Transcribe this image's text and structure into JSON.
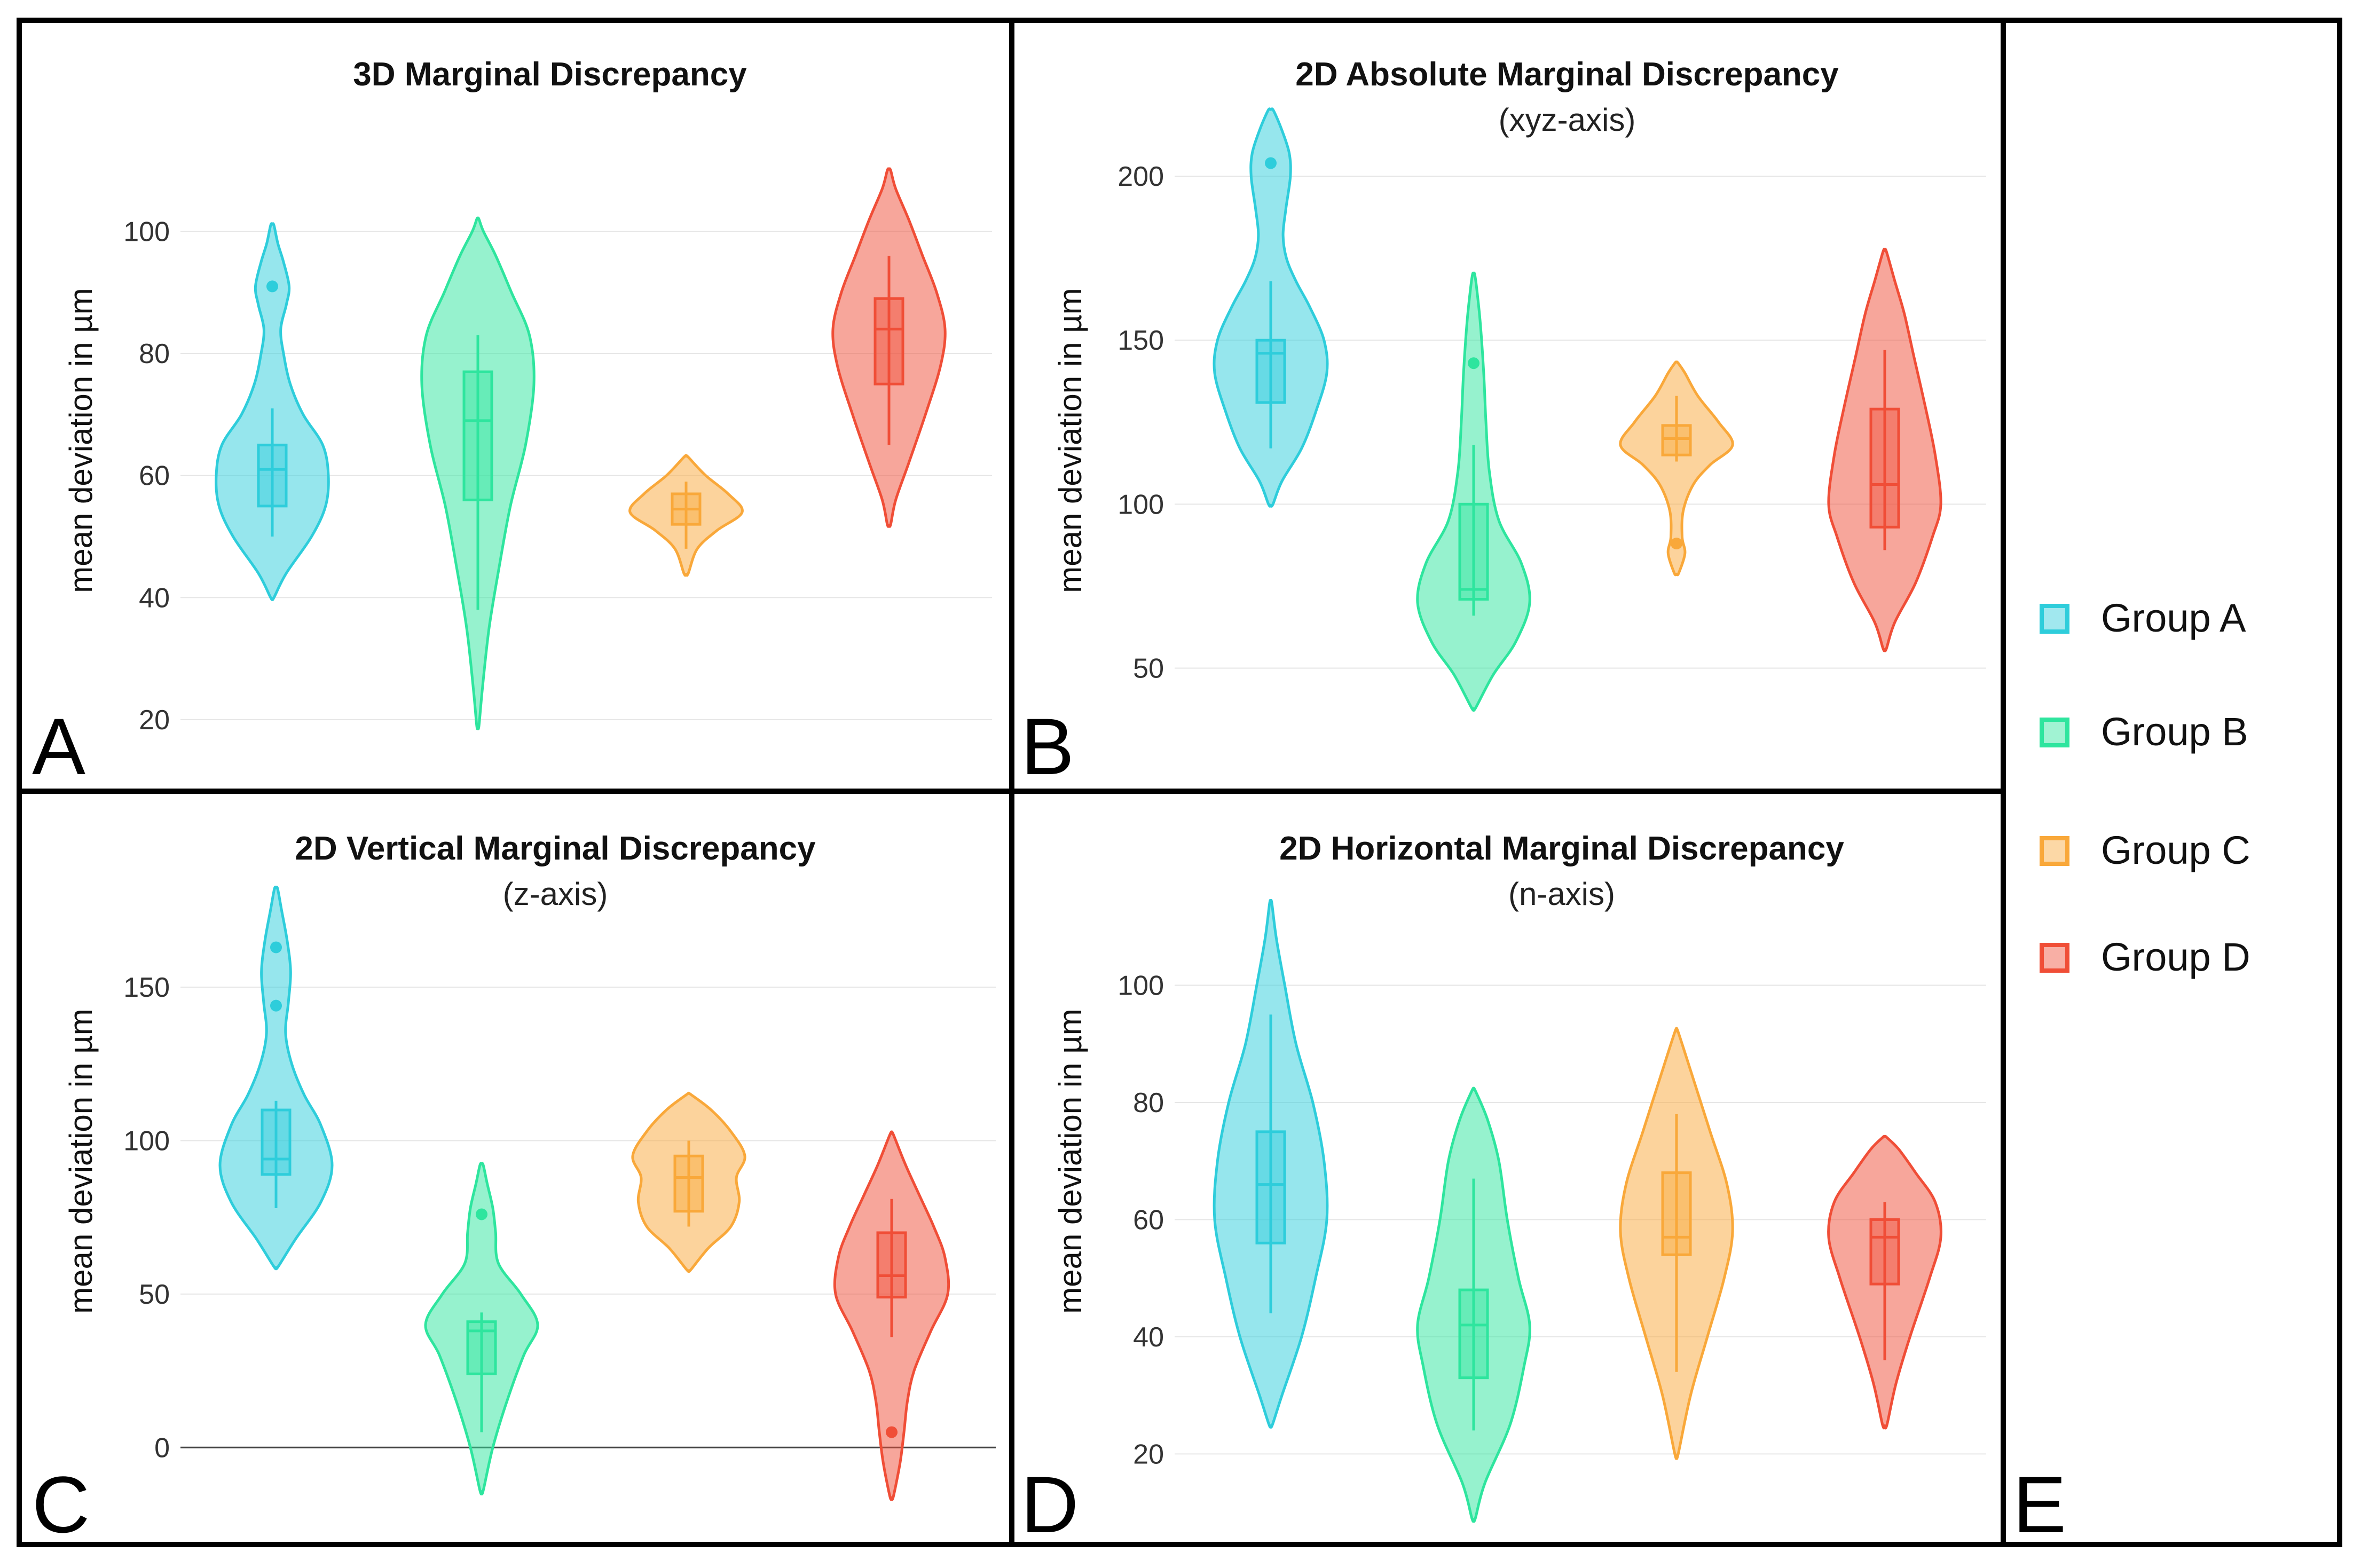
{
  "colors": {
    "Group A": "#2ECDDB",
    "Group B": "#2EE59E",
    "Group C": "#F9A83A",
    "Group D": "#F04E37"
  },
  "legend": {
    "items": [
      {
        "label": "Group A",
        "color": "#2ECDDB"
      },
      {
        "label": "Group B",
        "color": "#2EE59E"
      },
      {
        "label": "Group C",
        "color": "#F9A83A"
      },
      {
        "label": "Group D",
        "color": "#F04E37"
      }
    ],
    "panel_letter": "E"
  },
  "chart_data": [
    {
      "type": "violin",
      "panel_letter": "A",
      "title": "3D Marginal Discrepancy",
      "subtitle": "",
      "xlabel": "",
      "ylabel": "mean deviation in µm",
      "ylim": [
        15,
        113
      ],
      "yticks": [
        20,
        40,
        60,
        80,
        100
      ],
      "zero_line": false,
      "groups": [
        {
          "name": "Group A",
          "min": 50,
          "q1": 55,
          "median": 61,
          "q3": 65,
          "max": 71,
          "outliers": [
            91
          ],
          "density": [
            [
              40,
              0.03
            ],
            [
              44,
              0.25
            ],
            [
              50,
              0.7
            ],
            [
              55,
              0.95
            ],
            [
              60,
              1.0
            ],
            [
              65,
              0.9
            ],
            [
              70,
              0.55
            ],
            [
              75,
              0.32
            ],
            [
              80,
              0.2
            ],
            [
              84,
              0.15
            ],
            [
              88,
              0.25
            ],
            [
              91,
              0.3
            ],
            [
              95,
              0.2
            ],
            [
              98,
              0.1
            ],
            [
              101,
              0.03
            ]
          ]
        },
        {
          "name": "Group B",
          "min": 38,
          "q1": 56,
          "median": 69,
          "q3": 77,
          "max": 83,
          "outliers": [],
          "density": [
            [
              19,
              0.02
            ],
            [
              25,
              0.08
            ],
            [
              35,
              0.2
            ],
            [
              45,
              0.38
            ],
            [
              55,
              0.58
            ],
            [
              65,
              0.85
            ],
            [
              75,
              1.0
            ],
            [
              83,
              0.92
            ],
            [
              90,
              0.6
            ],
            [
              96,
              0.32
            ],
            [
              100,
              0.1
            ],
            [
              102,
              0.02
            ]
          ]
        },
        {
          "name": "Group C",
          "min": 48,
          "q1": 52,
          "median": 54.5,
          "q3": 57,
          "max": 59,
          "outliers": [],
          "density": [
            [
              44,
              0.04
            ],
            [
              48,
              0.2
            ],
            [
              51,
              0.55
            ],
            [
              54,
              1.0
            ],
            [
              57,
              0.75
            ],
            [
              60,
              0.35
            ],
            [
              63,
              0.04
            ]
          ]
        },
        {
          "name": "Group D",
          "min": 65,
          "q1": 75,
          "median": 84,
          "q3": 89,
          "max": 96,
          "outliers": [],
          "density": [
            [
              52,
              0.03
            ],
            [
              56,
              0.12
            ],
            [
              62,
              0.35
            ],
            [
              70,
              0.65
            ],
            [
              78,
              0.92
            ],
            [
              84,
              1.0
            ],
            [
              90,
              0.85
            ],
            [
              96,
              0.6
            ],
            [
              102,
              0.35
            ],
            [
              107,
              0.12
            ],
            [
              110,
              0.03
            ]
          ]
        }
      ]
    },
    {
      "type": "violin",
      "panel_letter": "B",
      "title": "2D Absolute Marginal Discrepancy",
      "subtitle": "(xyz-axis)",
      "xlabel": "",
      "ylabel": "mean deviation in µm",
      "ylim": [
        25,
        222
      ],
      "yticks": [
        50,
        100,
        150,
        200
      ],
      "zero_line": false,
      "groups": [
        {
          "name": "Group A",
          "min": 117,
          "q1": 131,
          "median": 146,
          "q3": 150,
          "max": 168,
          "outliers": [
            204
          ],
          "density": [
            [
              100,
              0.04
            ],
            [
              107,
              0.2
            ],
            [
              117,
              0.55
            ],
            [
              128,
              0.8
            ],
            [
              140,
              1.0
            ],
            [
              150,
              0.95
            ],
            [
              160,
              0.7
            ],
            [
              168,
              0.45
            ],
            [
              175,
              0.28
            ],
            [
              182,
              0.22
            ],
            [
              190,
              0.27
            ],
            [
              200,
              0.35
            ],
            [
              207,
              0.33
            ],
            [
              214,
              0.2
            ],
            [
              220,
              0.05
            ]
          ]
        },
        {
          "name": "Group B",
          "min": 66,
          "q1": 71,
          "median": 74,
          "q3": 100,
          "max": 118,
          "outliers": [
            143
          ],
          "density": [
            [
              38,
              0.04
            ],
            [
              48,
              0.35
            ],
            [
              58,
              0.75
            ],
            [
              70,
              1.0
            ],
            [
              82,
              0.85
            ],
            [
              95,
              0.45
            ],
            [
              110,
              0.28
            ],
            [
              125,
              0.22
            ],
            [
              140,
              0.18
            ],
            [
              155,
              0.12
            ],
            [
              165,
              0.06
            ],
            [
              170,
              0.02
            ]
          ]
        },
        {
          "name": "Group C",
          "min": 113,
          "q1": 115,
          "median": 120,
          "q3": 124,
          "max": 133,
          "outliers": [
            88
          ],
          "density": [
            [
              79,
              0.04
            ],
            [
              85,
              0.15
            ],
            [
              90,
              0.1
            ],
            [
              98,
              0.12
            ],
            [
              106,
              0.3
            ],
            [
              112,
              0.6
            ],
            [
              118,
              1.0
            ],
            [
              125,
              0.75
            ],
            [
              133,
              0.38
            ],
            [
              140,
              0.15
            ],
            [
              143,
              0.03
            ]
          ]
        },
        {
          "name": "Group D",
          "min": 86,
          "q1": 93,
          "median": 106,
          "q3": 129,
          "max": 147,
          "outliers": [],
          "density": [
            [
              56,
              0.03
            ],
            [
              64,
              0.18
            ],
            [
              76,
              0.55
            ],
            [
              90,
              0.85
            ],
            [
              100,
              1.0
            ],
            [
              115,
              0.9
            ],
            [
              130,
              0.72
            ],
            [
              145,
              0.52
            ],
            [
              158,
              0.35
            ],
            [
              168,
              0.18
            ],
            [
              177,
              0.03
            ]
          ]
        }
      ]
    },
    {
      "type": "violin",
      "panel_letter": "C",
      "title": "2D Vertical Marginal Discrepancy",
      "subtitle": "(z-axis)",
      "xlabel": "",
      "ylabel": "mean deviation in µm",
      "ylim": [
        -25,
        185
      ],
      "yticks": [
        0,
        50,
        100,
        150
      ],
      "zero_line": true,
      "groups": [
        {
          "name": "Group A",
          "min": 78,
          "q1": 89,
          "median": 94,
          "q3": 110,
          "max": 113,
          "outliers": [
            163,
            144
          ],
          "density": [
            [
              59,
              0.04
            ],
            [
              68,
              0.35
            ],
            [
              80,
              0.8
            ],
            [
              92,
              1.0
            ],
            [
              105,
              0.8
            ],
            [
              115,
              0.5
            ],
            [
              125,
              0.28
            ],
            [
              135,
              0.17
            ],
            [
              145,
              0.22
            ],
            [
              155,
              0.26
            ],
            [
              165,
              0.2
            ],
            [
              175,
              0.1
            ],
            [
              182,
              0.03
            ]
          ]
        },
        {
          "name": "Group B",
          "min": 5,
          "q1": 24,
          "median": 38,
          "q3": 41,
          "max": 44,
          "outliers": [
            76
          ],
          "density": [
            [
              -14,
              0.03
            ],
            [
              0,
              0.2
            ],
            [
              15,
              0.45
            ],
            [
              30,
              0.75
            ],
            [
              40,
              1.0
            ],
            [
              50,
              0.7
            ],
            [
              60,
              0.3
            ],
            [
              70,
              0.25
            ],
            [
              78,
              0.2
            ],
            [
              86,
              0.1
            ],
            [
              92,
              0.03
            ]
          ]
        },
        {
          "name": "Group C",
          "min": 72,
          "q1": 77,
          "median": 88,
          "q3": 95,
          "max": 100,
          "outliers": [],
          "density": [
            [
              58,
              0.04
            ],
            [
              65,
              0.35
            ],
            [
              72,
              0.75
            ],
            [
              80,
              0.9
            ],
            [
              88,
              0.85
            ],
            [
              95,
              1.0
            ],
            [
              103,
              0.75
            ],
            [
              110,
              0.4
            ],
            [
              115,
              0.04
            ]
          ]
        },
        {
          "name": "Group D",
          "min": 36,
          "q1": 49,
          "median": 56,
          "q3": 70,
          "max": 81,
          "outliers": [
            5
          ],
          "density": [
            [
              -16,
              0.03
            ],
            [
              -5,
              0.15
            ],
            [
              5,
              0.22
            ],
            [
              15,
              0.28
            ],
            [
              25,
              0.4
            ],
            [
              38,
              0.7
            ],
            [
              50,
              1.0
            ],
            [
              62,
              0.95
            ],
            [
              72,
              0.75
            ],
            [
              82,
              0.5
            ],
            [
              92,
              0.25
            ],
            [
              102,
              0.03
            ]
          ]
        }
      ]
    },
    {
      "type": "violin",
      "panel_letter": "D",
      "title": "2D Horizontal Marginal Discrepancy",
      "subtitle": "(n-axis)",
      "xlabel": "",
      "ylabel": "mean deviation in µm",
      "ylim": [
        8,
        118
      ],
      "yticks": [
        20,
        40,
        60,
        80,
        100
      ],
      "zero_line": false,
      "groups": [
        {
          "name": "Group A",
          "min": 44,
          "q1": 56,
          "median": 66,
          "q3": 75,
          "max": 95,
          "outliers": [],
          "density": [
            [
              25,
              0.03
            ],
            [
              30,
              0.2
            ],
            [
              40,
              0.55
            ],
            [
              50,
              0.8
            ],
            [
              60,
              1.0
            ],
            [
              70,
              0.95
            ],
            [
              80,
              0.75
            ],
            [
              90,
              0.45
            ],
            [
              100,
              0.25
            ],
            [
              108,
              0.1
            ],
            [
              114,
              0.02
            ]
          ]
        },
        {
          "name": "Group B",
          "min": 24,
          "q1": 33,
          "median": 42,
          "q3": 48,
          "max": 67,
          "outliers": [],
          "density": [
            [
              9,
              0.03
            ],
            [
              15,
              0.2
            ],
            [
              25,
              0.65
            ],
            [
              35,
              0.9
            ],
            [
              42,
              1.0
            ],
            [
              50,
              0.8
            ],
            [
              60,
              0.6
            ],
            [
              70,
              0.45
            ],
            [
              77,
              0.25
            ],
            [
              82,
              0.03
            ]
          ]
        },
        {
          "name": "Group C",
          "min": 34,
          "q1": 54,
          "median": 57,
          "q3": 68,
          "max": 78,
          "outliers": [],
          "density": [
            [
              20,
              0.03
            ],
            [
              30,
              0.25
            ],
            [
              40,
              0.55
            ],
            [
              50,
              0.85
            ],
            [
              58,
              1.0
            ],
            [
              66,
              0.9
            ],
            [
              75,
              0.6
            ],
            [
              84,
              0.3
            ],
            [
              92,
              0.03
            ]
          ]
        },
        {
          "name": "Group D",
          "min": 36,
          "q1": 49,
          "median": 57,
          "q3": 60,
          "max": 63,
          "outliers": [],
          "density": [
            [
              25,
              0.04
            ],
            [
              32,
              0.2
            ],
            [
              40,
              0.45
            ],
            [
              50,
              0.8
            ],
            [
              57,
              1.0
            ],
            [
              63,
              0.9
            ],
            [
              68,
              0.55
            ],
            [
              72,
              0.25
            ],
            [
              74,
              0.04
            ]
          ]
        }
      ]
    }
  ]
}
